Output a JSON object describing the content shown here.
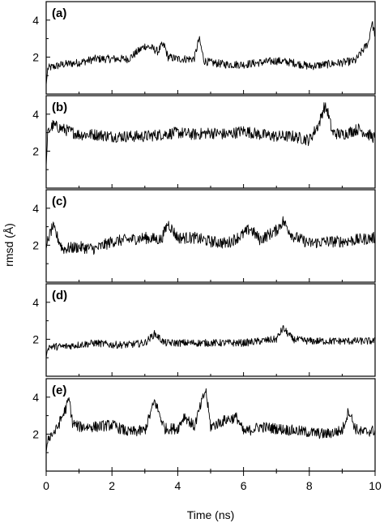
{
  "chart_data": {
    "type": "line",
    "ylabel": "rmsd (Å)",
    "xlabel": "Time (ns)",
    "xlim": [
      0,
      10
    ],
    "x_ticks": [
      "0",
      "2",
      "4",
      "6",
      "8",
      "10"
    ],
    "ylim": [
      0,
      5
    ],
    "y_ticks": [
      "2",
      "4"
    ],
    "line_color": "#000000",
    "panels": [
      {
        "label": "(a)",
        "baseline": 1.6,
        "noise": 0.22,
        "x": [
          0,
          0.05,
          0.5,
          1,
          1.5,
          2,
          2.5,
          3,
          3.2,
          3.4,
          3.5,
          3.6,
          3.7,
          4,
          4.5,
          4.65,
          4.8,
          5,
          5.5,
          6,
          6.5,
          7,
          7.5,
          8,
          8.5,
          9,
          9.4,
          9.6,
          9.8,
          9.9,
          10
        ],
        "y": [
          0.5,
          1.4,
          1.6,
          1.7,
          1.9,
          1.9,
          1.9,
          2.6,
          2.5,
          2.3,
          2.6,
          2.6,
          2.0,
          1.9,
          1.9,
          3.0,
          1.8,
          1.7,
          1.6,
          1.6,
          1.7,
          1.8,
          1.7,
          1.5,
          1.6,
          1.7,
          1.8,
          2.3,
          2.8,
          3.9,
          3.2
        ]
      },
      {
        "label": "(b)",
        "baseline": 2.9,
        "noise": 0.32,
        "x": [
          0,
          0.05,
          0.2,
          0.5,
          1,
          1.5,
          2,
          3,
          4,
          4.5,
          5,
          5.5,
          6,
          6.5,
          7,
          7.5,
          8,
          8.3,
          8.45,
          8.55,
          8.7,
          9,
          9.5,
          10
        ],
        "y": [
          1.2,
          3.0,
          3.4,
          3.2,
          2.9,
          2.9,
          2.8,
          2.8,
          3.0,
          2.9,
          3.0,
          2.9,
          3.1,
          2.9,
          2.8,
          2.8,
          2.6,
          3.5,
          4.4,
          4.2,
          3.0,
          2.9,
          3.2,
          2.7
        ]
      },
      {
        "label": "(c)",
        "baseline": 1.9,
        "noise": 0.32,
        "x": [
          0,
          0.05,
          0.2,
          0.5,
          1,
          1.5,
          2,
          2.5,
          3,
          3.5,
          3.7,
          4,
          4.5,
          5,
          5.5,
          6,
          6.2,
          6.5,
          7,
          7.2,
          7.5,
          8,
          8.5,
          9,
          9.5,
          10
        ],
        "y": [
          1.8,
          2.3,
          3.0,
          1.8,
          1.9,
          1.8,
          2.2,
          2.3,
          2.4,
          2.3,
          3.2,
          2.4,
          2.4,
          2.2,
          2.1,
          2.6,
          2.9,
          2.3,
          2.8,
          3.3,
          2.5,
          2.1,
          2.2,
          2.2,
          2.3,
          2.4
        ]
      },
      {
        "label": "(d)",
        "baseline": 1.75,
        "noise": 0.2,
        "x": [
          0,
          0.05,
          0.5,
          1,
          1.5,
          2,
          2.5,
          3,
          3.3,
          3.6,
          4,
          4.5,
          5,
          5.5,
          6,
          6.5,
          7,
          7.2,
          7.5,
          8,
          8.5,
          9,
          9.5,
          10
        ],
        "y": [
          1.0,
          1.6,
          1.6,
          1.7,
          1.8,
          1.7,
          1.7,
          1.8,
          2.3,
          1.8,
          1.8,
          1.8,
          1.8,
          1.8,
          1.8,
          1.9,
          2.0,
          2.6,
          2.0,
          1.9,
          1.9,
          1.9,
          1.9,
          1.9
        ]
      },
      {
        "label": "(e)",
        "baseline": 2.2,
        "noise": 0.3,
        "x": [
          0,
          0.05,
          0.3,
          0.6,
          0.7,
          0.8,
          1,
          1.5,
          2,
          2.5,
          3,
          3.3,
          3.6,
          4,
          4.2,
          4.5,
          4.85,
          5,
          5.5,
          5.8,
          6,
          6.5,
          7,
          7.5,
          8,
          8.5,
          9,
          9.2,
          9.4,
          9.6,
          10
        ],
        "y": [
          1.0,
          1.8,
          2.2,
          3.4,
          3.9,
          2.6,
          2.4,
          2.4,
          2.5,
          2.1,
          2.2,
          3.8,
          2.3,
          2.3,
          3.0,
          2.4,
          4.4,
          2.4,
          2.8,
          2.9,
          2.1,
          2.4,
          2.3,
          2.2,
          2.1,
          2.0,
          2.2,
          3.3,
          2.3,
          2.1,
          2.2
        ]
      }
    ]
  }
}
